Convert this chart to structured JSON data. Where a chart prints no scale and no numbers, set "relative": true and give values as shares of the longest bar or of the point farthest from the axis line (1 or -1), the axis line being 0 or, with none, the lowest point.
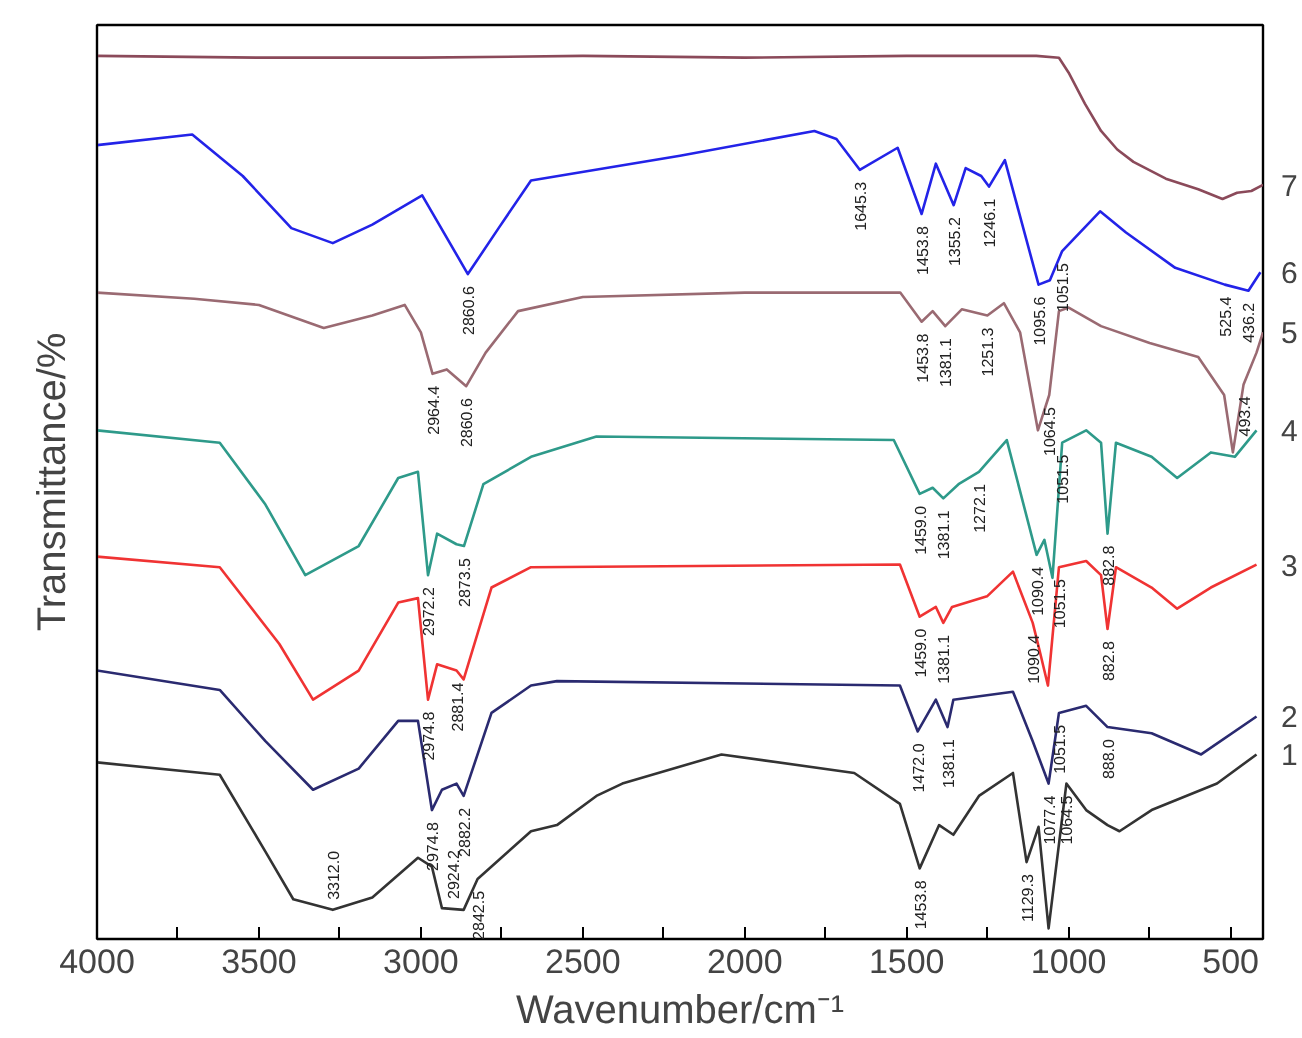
{
  "chart_data": {
    "type": "line",
    "relative": true,
    "xlabel": "Wavenumber/cm⁻¹",
    "ylabel": "Transmittance/%",
    "xlim": [
      4000,
      400
    ],
    "xticks": [
      4000,
      {
        "value": 3750,
        "label": null
      },
      3500,
      {
        "value": 3250,
        "label": null
      },
      3000,
      {
        "value": 2750,
        "label": null
      },
      2500,
      {
        "value": 2250,
        "label": null
      },
      2000,
      {
        "value": 1750,
        "label": null
      },
      1500,
      {
        "value": 1250,
        "label": null
      },
      1000,
      {
        "value": 750,
        "label": null
      },
      500
    ],
    "grid": false,
    "tick_labels": "x",
    "series": [
      {
        "name": "7",
        "color": "#8b4a5a",
        "x": [
          4000,
          3500,
          3000,
          2500,
          2000,
          1500,
          1100,
          1030,
          1000,
          950,
          900,
          850,
          800,
          700,
          600,
          525,
          480,
          436,
          400
        ],
        "values": [
          1.0,
          0.998,
          0.998,
          1.0,
          0.998,
          1.0,
          1.0,
          0.998,
          0.981,
          0.946,
          0.915,
          0.894,
          0.88,
          0.861,
          0.849,
          0.838,
          0.845,
          0.847,
          0.854
        ]
      },
      {
        "name": "6",
        "color": "#2323e8",
        "x": [
          4000,
          3706,
          3550,
          3400,
          3272,
          3150,
          2996,
          2855,
          2760,
          2660,
          2200,
          1785,
          1717,
          1645,
          1528,
          1454,
          1410,
          1355,
          1318,
          1270,
          1246,
          1197,
          1093,
          1058,
          1020,
          903,
          823,
          671,
          518,
          445,
          408
        ],
        "values": [
          0.899,
          0.911,
          0.864,
          0.805,
          0.788,
          0.809,
          0.842,
          0.753,
          0.805,
          0.859,
          0.887,
          0.915,
          0.906,
          0.871,
          0.896,
          0.821,
          0.878,
          0.831,
          0.873,
          0.864,
          0.852,
          0.882,
          0.741,
          0.746,
          0.779,
          0.824,
          0.8,
          0.76,
          0.741,
          0.734,
          0.755
        ]
      },
      {
        "name": "5",
        "color": "#9a6a72",
        "x": [
          4000,
          3700,
          3500,
          3300,
          3150,
          3050,
          3000,
          2964,
          2920,
          2860,
          2800,
          2700,
          2500,
          2000,
          1520,
          1454,
          1420,
          1381,
          1330,
          1251,
          1200,
          1150,
          1095,
          1060,
          1030,
          1000,
          900,
          750,
          600,
          520,
          493,
          460,
          420,
          400
        ],
        "values": [
          0.732,
          0.725,
          0.718,
          0.692,
          0.706,
          0.718,
          0.687,
          0.64,
          0.645,
          0.626,
          0.664,
          0.711,
          0.727,
          0.732,
          0.732,
          0.699,
          0.711,
          0.694,
          0.713,
          0.706,
          0.72,
          0.687,
          0.576,
          0.616,
          0.711,
          0.715,
          0.694,
          0.675,
          0.659,
          0.616,
          0.551,
          0.628,
          0.664,
          0.687
        ]
      },
      {
        "name": "4",
        "color": "#2e9a8a",
        "x": [
          4000,
          3621,
          3480,
          3357,
          3192,
          3070,
          3009,
          2978,
          2950,
          2890,
          2867,
          2807,
          2660,
          2458,
          1540,
          1460,
          1420,
          1387,
          1340,
          1277,
          1191,
          1099,
          1075,
          1050,
          1020,
          946,
          900,
          880,
          854,
          744,
          665,
          561,
          487,
          420
        ],
        "values": [
          0.576,
          0.562,
          0.492,
          0.412,
          0.445,
          0.522,
          0.529,
          0.412,
          0.459,
          0.447,
          0.445,
          0.515,
          0.546,
          0.569,
          0.565,
          0.504,
          0.511,
          0.499,
          0.515,
          0.529,
          0.565,
          0.435,
          0.452,
          0.409,
          0.562,
          0.576,
          0.562,
          0.459,
          0.562,
          0.546,
          0.522,
          0.551,
          0.546,
          0.576
        ]
      },
      {
        "name": "3",
        "color": "#f03333",
        "x": [
          4000,
          3621,
          3437,
          3333,
          3192,
          3070,
          3009,
          2978,
          2950,
          2890,
          2868,
          2782,
          2660,
          1521,
          1460,
          1410,
          1387,
          1360,
          1252,
          1172,
          1111,
          1090,
          1064,
          1030,
          946,
          900,
          880,
          854,
          744,
          665,
          561,
          420
        ],
        "values": [
          0.433,
          0.421,
          0.334,
          0.271,
          0.304,
          0.381,
          0.386,
          0.271,
          0.311,
          0.304,
          0.294,
          0.398,
          0.421,
          0.424,
          0.365,
          0.376,
          0.358,
          0.376,
          0.388,
          0.416,
          0.358,
          0.327,
          0.287,
          0.421,
          0.428,
          0.412,
          0.351,
          0.421,
          0.398,
          0.374,
          0.398,
          0.424
        ]
      },
      {
        "name": "2",
        "color": "#2a2a70",
        "x": [
          4000,
          3621,
          3480,
          3333,
          3192,
          3070,
          3009,
          2966,
          2935,
          2890,
          2868,
          2782,
          2660,
          2580,
          1521,
          1466,
          1410,
          1374,
          1356,
          1172,
          1111,
          1062,
          1030,
          946,
          880,
          744,
          591,
          420
        ],
        "values": [
          0.304,
          0.282,
          0.224,
          0.169,
          0.193,
          0.247,
          0.247,
          0.146,
          0.169,
          0.176,
          0.162,
          0.256,
          0.287,
          0.292,
          0.287,
          0.235,
          0.271,
          0.24,
          0.271,
          0.28,
          0.224,
          0.176,
          0.256,
          0.264,
          0.24,
          0.233,
          0.209,
          0.252
        ]
      },
      {
        "name": "1",
        "color": "#333333",
        "x": [
          4000,
          3621,
          3480,
          3394,
          3272,
          3150,
          3009,
          2966,
          2935,
          2868,
          2825,
          2660,
          2580,
          2458,
          2378,
          2072,
          1662,
          1521,
          1460,
          1400,
          1356,
          1277,
          1172,
          1130,
          1093,
          1062,
          1007,
          946,
          880,
          843,
          744,
          542,
          420
        ],
        "values": [
          0.2,
          0.186,
          0.099,
          0.045,
          0.033,
          0.047,
          0.092,
          0.082,
          0.035,
          0.033,
          0.068,
          0.122,
          0.129,
          0.162,
          0.176,
          0.209,
          0.188,
          0.153,
          0.08,
          0.129,
          0.118,
          0.162,
          0.188,
          0.087,
          0.127,
          0.012,
          0.176,
          0.146,
          0.129,
          0.122,
          0.146,
          0.176,
          0.209
        ]
      }
    ],
    "annotations": [
      {
        "text": "2860.6",
        "x": 2855,
        "y": 0.753
      },
      {
        "text": "1645.3",
        "x": 1645,
        "y": 0.871
      },
      {
        "text": "1453.8",
        "x": 1454,
        "y": 0.821
      },
      {
        "text": "1355.2",
        "x": 1355,
        "y": 0.831
      },
      {
        "text": "1246.1",
        "x": 1246,
        "y": 0.852
      },
      {
        "text": "1095.6",
        "x": 1093,
        "y": 0.741
      },
      {
        "text": "1051.5",
        "x": 1020,
        "y": 0.779
      },
      {
        "text": "525.4",
        "x": 518,
        "y": 0.741
      },
      {
        "text": "436.2",
        "x": 445,
        "y": 0.734
      },
      {
        "text": "2964.4",
        "x": 2964,
        "y": 0.64
      },
      {
        "text": "2860.6",
        "x": 2860,
        "y": 0.626
      },
      {
        "text": "1453.8",
        "x": 1454,
        "y": 0.699
      },
      {
        "text": "1381.1",
        "x": 1381,
        "y": 0.694
      },
      {
        "text": "1251.3",
        "x": 1251,
        "y": 0.706
      },
      {
        "text": "493.4",
        "x": 460,
        "y": 0.628
      },
      {
        "text": "1064.5",
        "x": 1060,
        "y": 0.616
      },
      {
        "text": "2873.5",
        "x": 2867,
        "y": 0.445
      },
      {
        "text": "2972.2",
        "x": 2978,
        "y": 0.412
      },
      {
        "text": "1459.0",
        "x": 1460,
        "y": 0.504
      },
      {
        "text": "1381.1",
        "x": 1387,
        "y": 0.499
      },
      {
        "text": "1272.1",
        "x": 1277,
        "y": 0.529
      },
      {
        "text": "1090.4",
        "x": 1099,
        "y": 0.435
      },
      {
        "text": "1051.5",
        "x": 1020,
        "y": 0.562
      },
      {
        "text": "882.8",
        "x": 880,
        "y": 0.459
      },
      {
        "text": "2881.4",
        "x": 2890,
        "y": 0.304
      },
      {
        "text": "2974.8",
        "x": 2978,
        "y": 0.271
      },
      {
        "text": "1459.0",
        "x": 1460,
        "y": 0.365
      },
      {
        "text": "1381.1",
        "x": 1387,
        "y": 0.358
      },
      {
        "text": "1090.4",
        "x": 1111,
        "y": 0.358
      },
      {
        "text": "1051.5",
        "x": 1030,
        "y": 0.421
      },
      {
        "text": "882.8",
        "x": 880,
        "y": 0.351
      },
      {
        "text": "2974.8",
        "x": 2966,
        "y": 0.146
      },
      {
        "text": "2882.2",
        "x": 2868,
        "y": 0.162
      },
      {
        "text": "1472.0",
        "x": 1466,
        "y": 0.235
      },
      {
        "text": "1381.1",
        "x": 1374,
        "y": 0.24
      },
      {
        "text": "1051.5",
        "x": 1030,
        "y": 0.256
      },
      {
        "text": "888.0",
        "x": 880,
        "y": 0.24
      },
      {
        "text": "1077.4",
        "x": 1062,
        "y": 0.176
      },
      {
        "text": "1453.8",
        "x": 1460,
        "y": 0.08
      },
      {
        "text": "1129.3",
        "x": 1130,
        "y": 0.087
      },
      {
        "text": "1064.5",
        "x": 1007,
        "y": 0.176
      },
      {
        "text": "3312.0",
        "x": 3272,
        "y": 0.033
      },
      {
        "text": "2924.2",
        "x": 2900,
        "y": 0.034
      },
      {
        "text": "2842.5",
        "x": 2825,
        "y": 0.068
      }
    ]
  }
}
